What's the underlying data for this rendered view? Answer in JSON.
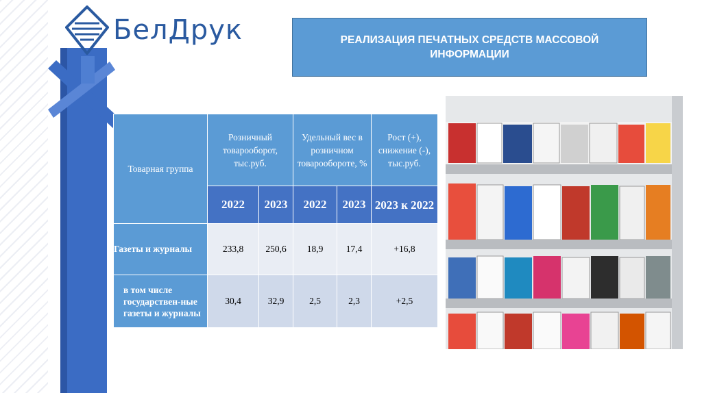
{
  "logo": {
    "text": "БелДрук"
  },
  "title": "РЕАЛИЗАЦИЯ ПЕЧАТНЫХ СРЕДСТВ МАССОВОЙ ИНФОРМАЦИИ",
  "table": {
    "header_group": "Товарная группа",
    "header_retail": "Розничный товарооборот, тыс.руб.",
    "header_share": "Удельный вес в розничном товарообороте, %",
    "header_growth": "Рост (+), снижение (-), тыс.руб.",
    "years": [
      "2022",
      "2023",
      "2022",
      "2023"
    ],
    "growth_period": "2023 к 2022",
    "rows": [
      {
        "group": "Газеты и журналы",
        "retail_2022": "233,8",
        "retail_2023": "250,6",
        "share_2022": "18,9",
        "share_2023": "17,4",
        "growth": "+16,8"
      },
      {
        "group": "в том числе государствен-ные газеты и журналы",
        "retail_2022": "30,4",
        "retail_2023": "32,9",
        "share_2022": "2,5",
        "share_2023": "2,3",
        "growth": "+2,5"
      }
    ]
  },
  "colors": {
    "accent": "#5b9bd5",
    "dark_accent": "#4472c4",
    "brand": "#2a5aa0"
  },
  "photo": {
    "description_icon": "newspaper-rack-photo"
  }
}
